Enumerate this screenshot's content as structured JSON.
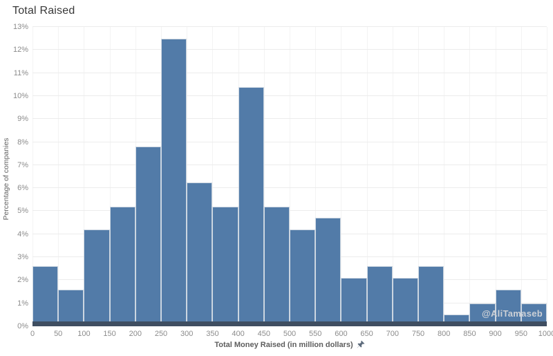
{
  "window": {
    "title": "Total Raised"
  },
  "watermark": "@AliTamaseb",
  "colors": {
    "bar_fill": "#527ba8",
    "bar_border": "#ccd6e1",
    "axis_band": "#3f4e61",
    "gridline": "#ececec",
    "tick_label": "#8b8b8b",
    "title_text": "#373737",
    "axis_title_text": "#5d5d5d",
    "watermark_text": "#ccd0d6",
    "background": "#ffffff"
  },
  "chart_data": {
    "type": "bar",
    "subtype": "histogram",
    "title": "Total Raised",
    "xlabel": "Total Money Raised (in million dollars)",
    "ylabel": "Percentage of companies",
    "bin_width": 50,
    "xlim": [
      0,
      1000
    ],
    "ylim": [
      0,
      13
    ],
    "grid": "on",
    "legend": "none",
    "categories": [
      "0-50",
      "50-100",
      "100-150",
      "150-200",
      "200-250",
      "250-300",
      "300-350",
      "350-400",
      "400-450",
      "450-500",
      "500-550",
      "550-600",
      "600-650",
      "650-700",
      "700-750",
      "750-800",
      "800-850",
      "850-900",
      "900-950",
      "950-1000"
    ],
    "values": [
      2.6,
      1.6,
      4.2,
      5.2,
      7.8,
      12.5,
      6.25,
      5.2,
      10.4,
      5.2,
      4.2,
      4.7,
      2.1,
      2.6,
      2.1,
      2.6,
      0.5,
      1.0,
      1.6,
      1.0
    ],
    "x_tick_labels": [
      "0",
      "50",
      "100",
      "150",
      "200",
      "250",
      "300",
      "350",
      "400",
      "450",
      "500",
      "550",
      "600",
      "650",
      "700",
      "750",
      "800",
      "850",
      "900",
      "950",
      "1000"
    ],
    "y_tick_labels": [
      "0%",
      "1%",
      "2%",
      "3%",
      "4%",
      "5%",
      "6%",
      "7%",
      "8%",
      "9%",
      "10%",
      "11%",
      "12%",
      "13%"
    ]
  }
}
